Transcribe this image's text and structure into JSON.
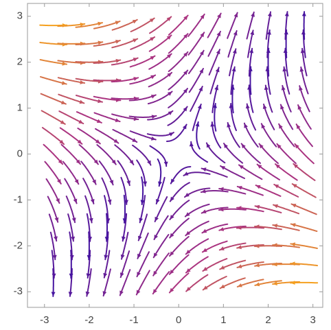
{
  "chart_data": {
    "type": "stream",
    "xlim": [
      -3.38,
      3.22
    ],
    "ylim": [
      -3.34,
      3.28
    ],
    "xticks": [
      -3,
      -2,
      -1,
      0,
      1,
      2,
      3
    ],
    "yticks": [
      -3,
      -2,
      -1,
      0,
      1,
      2,
      3
    ],
    "grid": false
  }
}
